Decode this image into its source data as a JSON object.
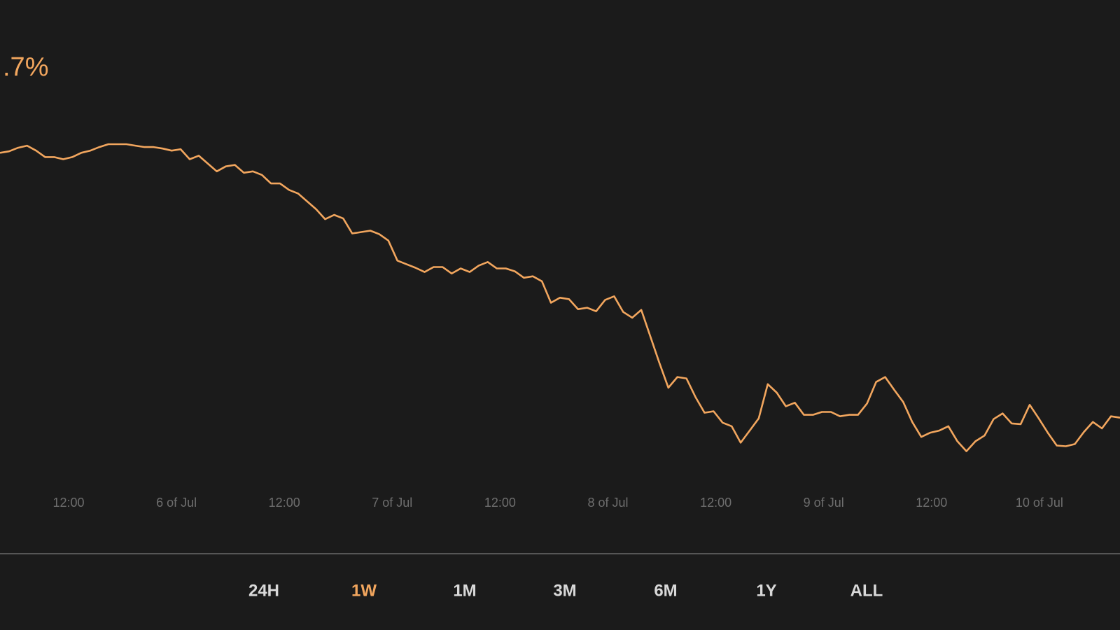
{
  "header": {
    "change": ".7%"
  },
  "chart_data": {
    "type": "line",
    "color": "#f2a65e",
    "ylim": [
      0,
      600
    ],
    "xticks": [
      "12:00",
      "6 of Jul",
      "12:00",
      "7 of Jul",
      "12:00",
      "8 of Jul",
      "12:00",
      "9 of Jul",
      "12:00",
      "10 of Jul"
    ],
    "values": [
      486,
      488,
      493,
      496,
      489,
      480,
      480,
      477,
      480,
      486,
      489,
      494,
      498,
      498,
      498,
      496,
      494,
      494,
      492,
      489,
      491,
      477,
      482,
      471,
      460,
      467,
      469,
      458,
      460,
      455,
      443,
      443,
      434,
      429,
      418,
      407,
      393,
      399,
      394,
      373,
      375,
      377,
      372,
      363,
      335,
      330,
      325,
      319,
      326,
      326,
      317,
      324,
      319,
      328,
      333,
      324,
      324,
      320,
      311,
      313,
      306,
      276,
      283,
      281,
      267,
      269,
      264,
      280,
      285,
      263,
      255,
      266,
      229,
      192,
      157,
      172,
      170,
      144,
      122,
      124,
      108,
      103,
      80,
      97,
      114,
      162,
      150,
      131,
      136,
      119,
      119,
      123,
      123,
      117,
      119,
      119,
      135,
      165,
      172,
      154,
      137,
      109,
      88,
      94,
      97,
      103,
      82,
      68,
      82,
      90,
      113,
      121,
      107,
      106,
      133,
      114,
      94,
      76,
      75,
      78,
      95,
      109,
      100,
      117,
      115
    ]
  },
  "tabs": {
    "items": [
      "24H",
      "1W",
      "1M",
      "3M",
      "6M",
      "1Y",
      "ALL"
    ],
    "active": 1,
    "active_color": "#f2a65e",
    "color": "#d9d9d9"
  }
}
